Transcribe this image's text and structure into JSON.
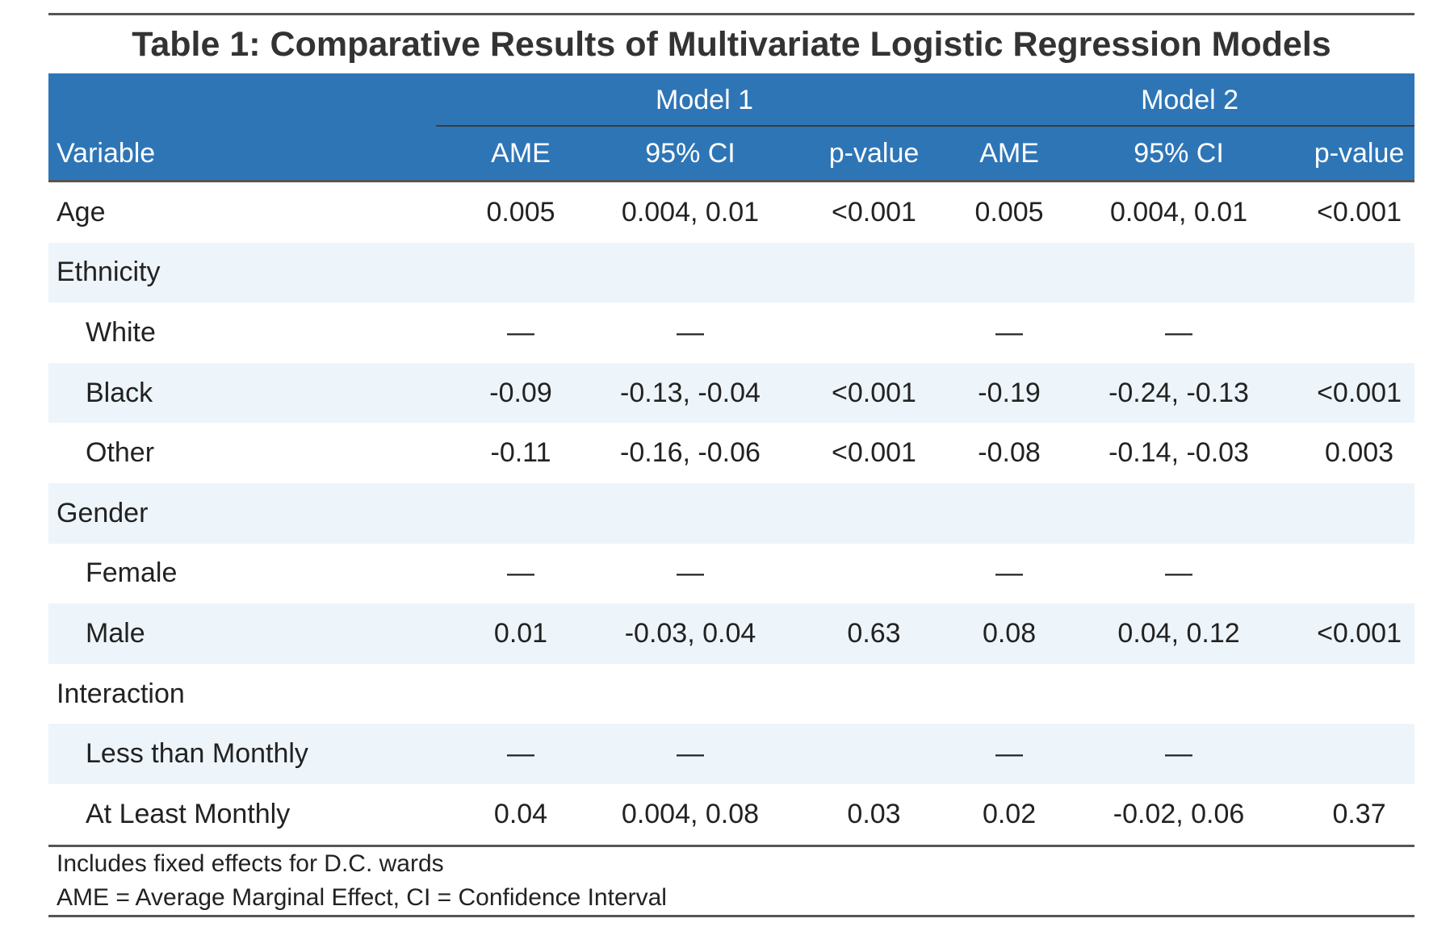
{
  "title": "Table 1: Comparative Results of Multivariate Logistic Regression Models",
  "header": {
    "variable_label": "Variable",
    "model1_label": "Model 1",
    "model2_label": "Model 2",
    "columns": [
      "AME",
      "95% CI",
      "p-value",
      "AME",
      "95% CI",
      "p-value"
    ]
  },
  "rows": [
    {
      "label": "Age",
      "indent": false,
      "alt": false,
      "cells": [
        "0.005",
        "0.004, 0.01",
        "<0.001",
        "0.005",
        "0.004, 0.01",
        "<0.001"
      ]
    },
    {
      "label": "Ethnicity",
      "indent": false,
      "alt": true,
      "cells": [
        "",
        "",
        "",
        "",
        "",
        ""
      ]
    },
    {
      "label": "White",
      "indent": true,
      "alt": false,
      "cells": [
        "—",
        "—",
        "",
        "—",
        "—",
        ""
      ]
    },
    {
      "label": "Black",
      "indent": true,
      "alt": true,
      "cells": [
        "-0.09",
        "-0.13, -0.04",
        "<0.001",
        "-0.19",
        "-0.24, -0.13",
        "<0.001"
      ]
    },
    {
      "label": "Other",
      "indent": true,
      "alt": false,
      "cells": [
        "-0.11",
        "-0.16, -0.06",
        "<0.001",
        "-0.08",
        "-0.14, -0.03",
        "0.003"
      ]
    },
    {
      "label": "Gender",
      "indent": false,
      "alt": true,
      "cells": [
        "",
        "",
        "",
        "",
        "",
        ""
      ]
    },
    {
      "label": "Female",
      "indent": true,
      "alt": false,
      "cells": [
        "—",
        "—",
        "",
        "—",
        "—",
        ""
      ]
    },
    {
      "label": "Male",
      "indent": true,
      "alt": true,
      "cells": [
        "0.01",
        "-0.03, 0.04",
        "0.63",
        "0.08",
        "0.04, 0.12",
        "<0.001"
      ]
    },
    {
      "label": "Interaction",
      "indent": false,
      "alt": false,
      "cells": [
        "",
        "",
        "",
        "",
        "",
        ""
      ]
    },
    {
      "label": "Less than Monthly",
      "indent": true,
      "alt": true,
      "cells": [
        "—",
        "—",
        "",
        "—",
        "—",
        ""
      ]
    },
    {
      "label": "At Least Monthly",
      "indent": true,
      "alt": false,
      "cells": [
        "0.04",
        "0.004, 0.08",
        "0.03",
        "0.02",
        "-0.02, 0.06",
        "0.37"
      ]
    }
  ],
  "notes": [
    "Includes fixed effects for D.C. wards",
    "AME = Average Marginal Effect, CI = Confidence Interval"
  ],
  "colors": {
    "header_bg": "#2e75b6",
    "header_text": "#ffffff",
    "stripe_bg": "#eef5fa",
    "rule": "#555555"
  }
}
